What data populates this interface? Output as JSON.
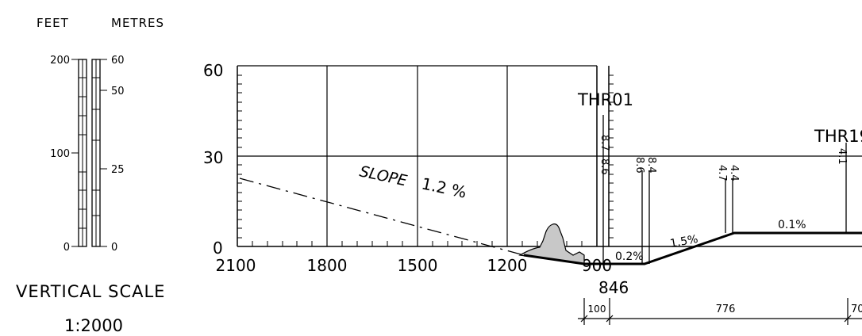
{
  "scale": {
    "feet_label": "FEET",
    "metres_label": "METRES",
    "feet_ticks": [
      "200",
      "100",
      "0"
    ],
    "metres_ticks": [
      "60",
      "50",
      "25",
      "0"
    ],
    "title": "VERTICAL SCALE",
    "ratio": "1:2000"
  },
  "profile": {
    "y_ticks": [
      "60",
      "30",
      "0"
    ],
    "x_ticks": [
      "2100",
      "1800",
      "1500",
      "1200",
      "900"
    ],
    "slope_label_word": "SLOPE",
    "slope_label_value": "1.2 %",
    "grades": [
      "0.2%",
      "1.5%",
      "0.1%"
    ],
    "thresholds": {
      "thr01": "THR01",
      "thr19": "THR19",
      "thr01_marks": [
        "8.7",
        "8.6"
      ],
      "mid_marks": [
        "8.6",
        "8.4"
      ],
      "mid2_marks": [
        "4.7",
        "4.4"
      ],
      "thr19_mark": "4.1"
    },
    "distance_label": "846",
    "dims": [
      "100",
      "776",
      "70"
    ]
  }
}
